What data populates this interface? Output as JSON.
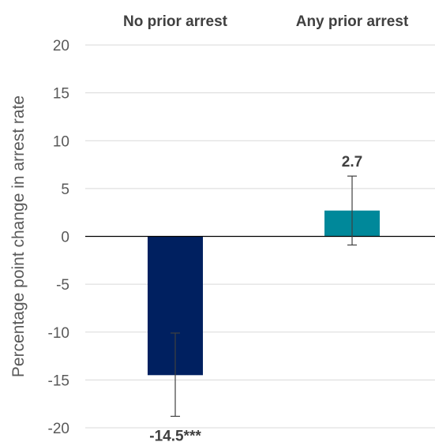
{
  "chart_data": {
    "type": "bar",
    "title": "",
    "xlabel": "",
    "ylabel": "Percentage point change in arrest rate",
    "ylim": [
      -20,
      20
    ],
    "yticks": [
      20,
      15,
      10,
      5,
      0,
      -5,
      -10,
      -15,
      -20
    ],
    "categories": [
      "No prior arrest",
      "Any prior arrest"
    ],
    "values": [
      -14.5,
      2.7
    ],
    "data_labels": [
      "-14.5***",
      "2.7"
    ],
    "error_low": [
      -18.8,
      -0.9
    ],
    "error_high": [
      -10.1,
      6.3
    ],
    "colors": [
      "#002060",
      "#00889A"
    ],
    "grid": true,
    "category_labels_position": "top"
  }
}
